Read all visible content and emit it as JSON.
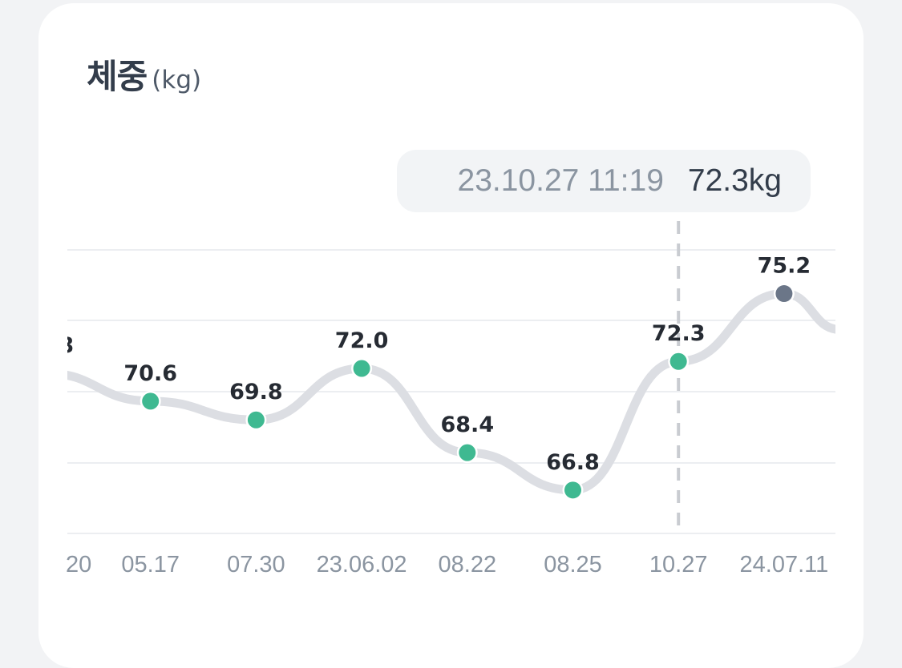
{
  "header": {
    "title": "체중",
    "unit": "(kg)"
  },
  "tooltip": {
    "datetime": "23.10.27 11:19",
    "value": "72.3kg"
  },
  "colors": {
    "point": "#3fb991",
    "point_last": "#6b7688",
    "line": "#dcdee3",
    "grid": "#eceef1",
    "cursor": "#c9ccd1"
  },
  "chart_data": {
    "type": "line",
    "x": [
      "…20",
      "05.17",
      "07.30",
      "23.06.02",
      "08.22",
      "08.25",
      "10.27",
      "24.07.11"
    ],
    "series": [
      {
        "values": [
          71.8,
          70.6,
          69.8,
          72.0,
          68.4,
          66.8,
          72.3,
          75.2
        ]
      }
    ],
    "value_labels": [
      "…8",
      "70.6",
      "69.8",
      "72.0",
      "68.4",
      "66.8",
      "72.3",
      "75.2"
    ],
    "x_tick_labels": [
      "20",
      "05.17",
      "07.30",
      "23.06.02",
      "08.22",
      "08.25",
      "10.27",
      "24.07.11"
    ],
    "highlighted_index": 6,
    "grid": true,
    "grid_lines": 5
  }
}
